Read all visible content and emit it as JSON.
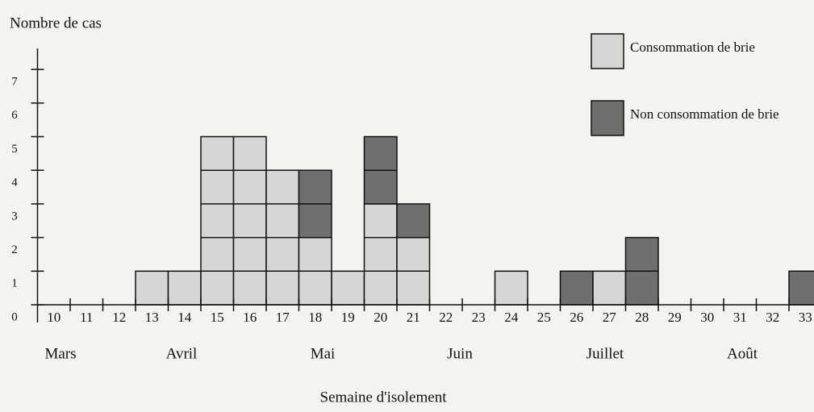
{
  "chart_data": {
    "type": "bar",
    "stacked": true,
    "y_label": "Nombre de cas",
    "x_label": "Semaine d'isolement",
    "categories": [
      "10",
      "11",
      "12",
      "13",
      "14",
      "15",
      "16",
      "17",
      "18",
      "19",
      "20",
      "21",
      "22",
      "23",
      "24",
      "25",
      "26",
      "27",
      "28",
      "29",
      "30",
      "31",
      "32",
      "33"
    ],
    "series": [
      {
        "name": "Consommation de brie",
        "color": "#d6d6d6",
        "values": [
          0,
          0,
          0,
          1,
          1,
          5,
          5,
          4,
          2,
          1,
          3,
          2,
          0,
          0,
          1,
          0,
          0,
          1,
          0,
          0,
          0,
          0,
          0,
          0
        ]
      },
      {
        "name": "Non consommation de brie",
        "color": "#6f6f6f",
        "values": [
          0,
          0,
          0,
          0,
          0,
          0,
          0,
          0,
          2,
          0,
          2,
          1,
          0,
          0,
          0,
          0,
          1,
          0,
          2,
          0,
          0,
          0,
          0,
          1
        ]
      }
    ],
    "months": [
      "Mars",
      "Avril",
      "Mai",
      "Juin",
      "Juillet",
      "Août"
    ],
    "ylim": [
      0,
      7
    ],
    "yticks": [
      0,
      1,
      2,
      3,
      4,
      5,
      6,
      7
    ]
  }
}
